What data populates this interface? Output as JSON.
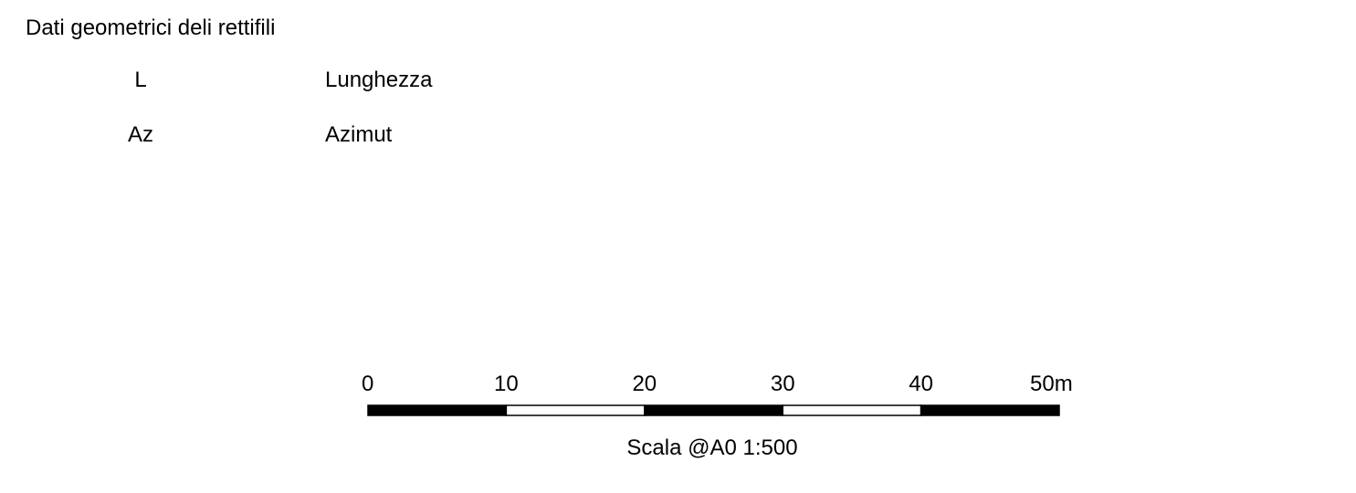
{
  "title": "Dati geometrici deli rettifili",
  "legend": [
    {
      "abbr": "L",
      "description": "Lunghezza"
    },
    {
      "abbr": "Az",
      "description": "Azimut"
    }
  ],
  "scale_bar": {
    "tick_labels": [
      "0",
      "10",
      "20",
      "30",
      "40",
      "50m"
    ],
    "segments": [
      "black",
      "white",
      "black",
      "white",
      "black"
    ],
    "caption": "Scala @A0 1:500"
  },
  "colors": {
    "text": "#000000",
    "background": "#ffffff",
    "bar_dark": "#000000",
    "bar_light": "#ffffff"
  }
}
